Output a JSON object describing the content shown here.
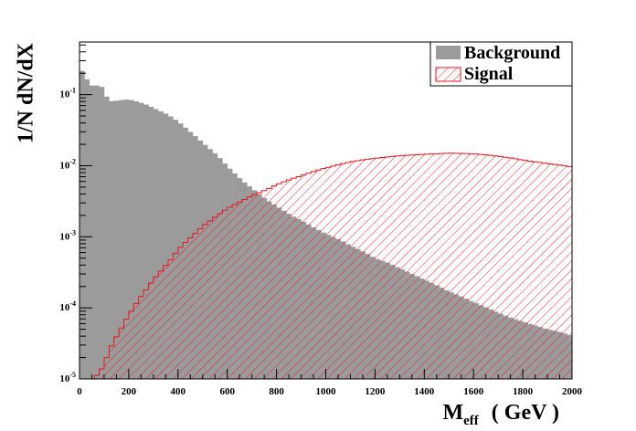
{
  "chart_data": {
    "type": "histogram",
    "xlabel_main": "M",
    "xlabel_sub": "eff",
    "xlabel_unit": "( GeV )",
    "ylabel": "1/N dN/dX",
    "x_range": [
      0,
      2000
    ],
    "y_range": [
      1e-05,
      0.55
    ],
    "y_scale": "log",
    "bin_width": 20,
    "x_ticks": [
      0,
      200,
      400,
      600,
      800,
      1000,
      1200,
      1400,
      1600,
      1800,
      2000
    ],
    "x_tick_labels": [
      "0",
      "200",
      "400",
      "600",
      "800",
      "1000",
      "1200",
      "1400",
      "1600",
      "1800",
      "2000"
    ],
    "y_ticks": [
      1e-05,
      0.0001,
      0.001,
      0.01,
      0.1
    ],
    "y_tick_labels": [
      {
        "base": "10",
        "exp": "-5"
      },
      {
        "base": "10",
        "exp": "-4"
      },
      {
        "base": "10",
        "exp": "-3"
      },
      {
        "base": "10",
        "exp": "-2"
      },
      {
        "base": "10",
        "exp": "-1"
      }
    ],
    "legend": {
      "placement": "top-right",
      "entries": [
        {
          "label": "Background",
          "style": "solid-grey"
        },
        {
          "label": "Signal",
          "style": "red-hatched"
        }
      ]
    },
    "colors": {
      "background_fill": "#9b9b9b",
      "signal_line": "#e8141e",
      "axis": "#000000"
    },
    "series": [
      {
        "name": "Background",
        "knots": [
          [
            0,
            0.26
          ],
          [
            20,
            0.18
          ],
          [
            40,
            0.15
          ],
          [
            60,
            0.12
          ],
          [
            80,
            0.15
          ],
          [
            100,
            0.11
          ],
          [
            120,
            0.08
          ],
          [
            200,
            0.086
          ],
          [
            260,
            0.075
          ],
          [
            300,
            0.065
          ],
          [
            360,
            0.052
          ],
          [
            400,
            0.042
          ],
          [
            460,
            0.028
          ],
          [
            500,
            0.021
          ],
          [
            560,
            0.014
          ],
          [
            600,
            0.0098
          ],
          [
            660,
            0.0062
          ],
          [
            700,
            0.0048
          ],
          [
            760,
            0.0033
          ],
          [
            800,
            0.0027
          ],
          [
            860,
            0.002
          ],
          [
            900,
            0.0017
          ],
          [
            960,
            0.0013
          ],
          [
            1000,
            0.0011
          ],
          [
            1060,
            0.0009
          ],
          [
            1100,
            0.00075
          ],
          [
            1160,
            0.0006
          ],
          [
            1200,
            0.0005
          ],
          [
            1260,
            0.00042
          ],
          [
            1300,
            0.00036
          ],
          [
            1360,
            0.00029
          ],
          [
            1400,
            0.00025
          ],
          [
            1460,
            0.0002
          ],
          [
            1500,
            0.00017
          ],
          [
            1560,
            0.00014
          ],
          [
            1600,
            0.00012
          ],
          [
            1660,
            9.9e-05
          ],
          [
            1700,
            8.5e-05
          ],
          [
            1760,
            7.1e-05
          ],
          [
            1800,
            6.4e-05
          ],
          [
            1860,
            5.5e-05
          ],
          [
            1900,
            5e-05
          ],
          [
            1960,
            4.5e-05
          ],
          [
            2000,
            4e-05
          ]
        ]
      },
      {
        "name": "Signal",
        "knots": [
          [
            60,
            1.05e-05
          ],
          [
            80,
            1.2e-05
          ],
          [
            100,
            1.6e-05
          ],
          [
            120,
            2.5e-05
          ],
          [
            140,
            3.4e-05
          ],
          [
            160,
            4.5e-05
          ],
          [
            180,
            6e-05
          ],
          [
            200,
            8e-05
          ],
          [
            240,
            0.00013
          ],
          [
            260,
            0.00016
          ],
          [
            300,
            0.00025
          ],
          [
            340,
            0.00036
          ],
          [
            380,
            0.00052
          ],
          [
            400,
            0.00066
          ],
          [
            440,
            0.0009
          ],
          [
            480,
            0.0012
          ],
          [
            500,
            0.0014
          ],
          [
            560,
            0.002
          ],
          [
            600,
            0.0025
          ],
          [
            660,
            0.0032
          ],
          [
            700,
            0.0038
          ],
          [
            760,
            0.0046
          ],
          [
            800,
            0.0054
          ],
          [
            860,
            0.0065
          ],
          [
            900,
            0.0072
          ],
          [
            960,
            0.0085
          ],
          [
            1000,
            0.0093
          ],
          [
            1060,
            0.0105
          ],
          [
            1100,
            0.0113
          ],
          [
            1160,
            0.0122
          ],
          [
            1200,
            0.0127
          ],
          [
            1260,
            0.0134
          ],
          [
            1300,
            0.0138
          ],
          [
            1360,
            0.0142
          ],
          [
            1400,
            0.0145
          ],
          [
            1460,
            0.0148
          ],
          [
            1500,
            0.015
          ],
          [
            1560,
            0.0149
          ],
          [
            1600,
            0.0147
          ],
          [
            1660,
            0.0141
          ],
          [
            1700,
            0.0136
          ],
          [
            1760,
            0.0127
          ],
          [
            1800,
            0.012
          ],
          [
            1860,
            0.0112
          ],
          [
            1900,
            0.0107
          ],
          [
            1960,
            0.0101
          ],
          [
            2000,
            0.0096
          ]
        ]
      }
    ]
  }
}
